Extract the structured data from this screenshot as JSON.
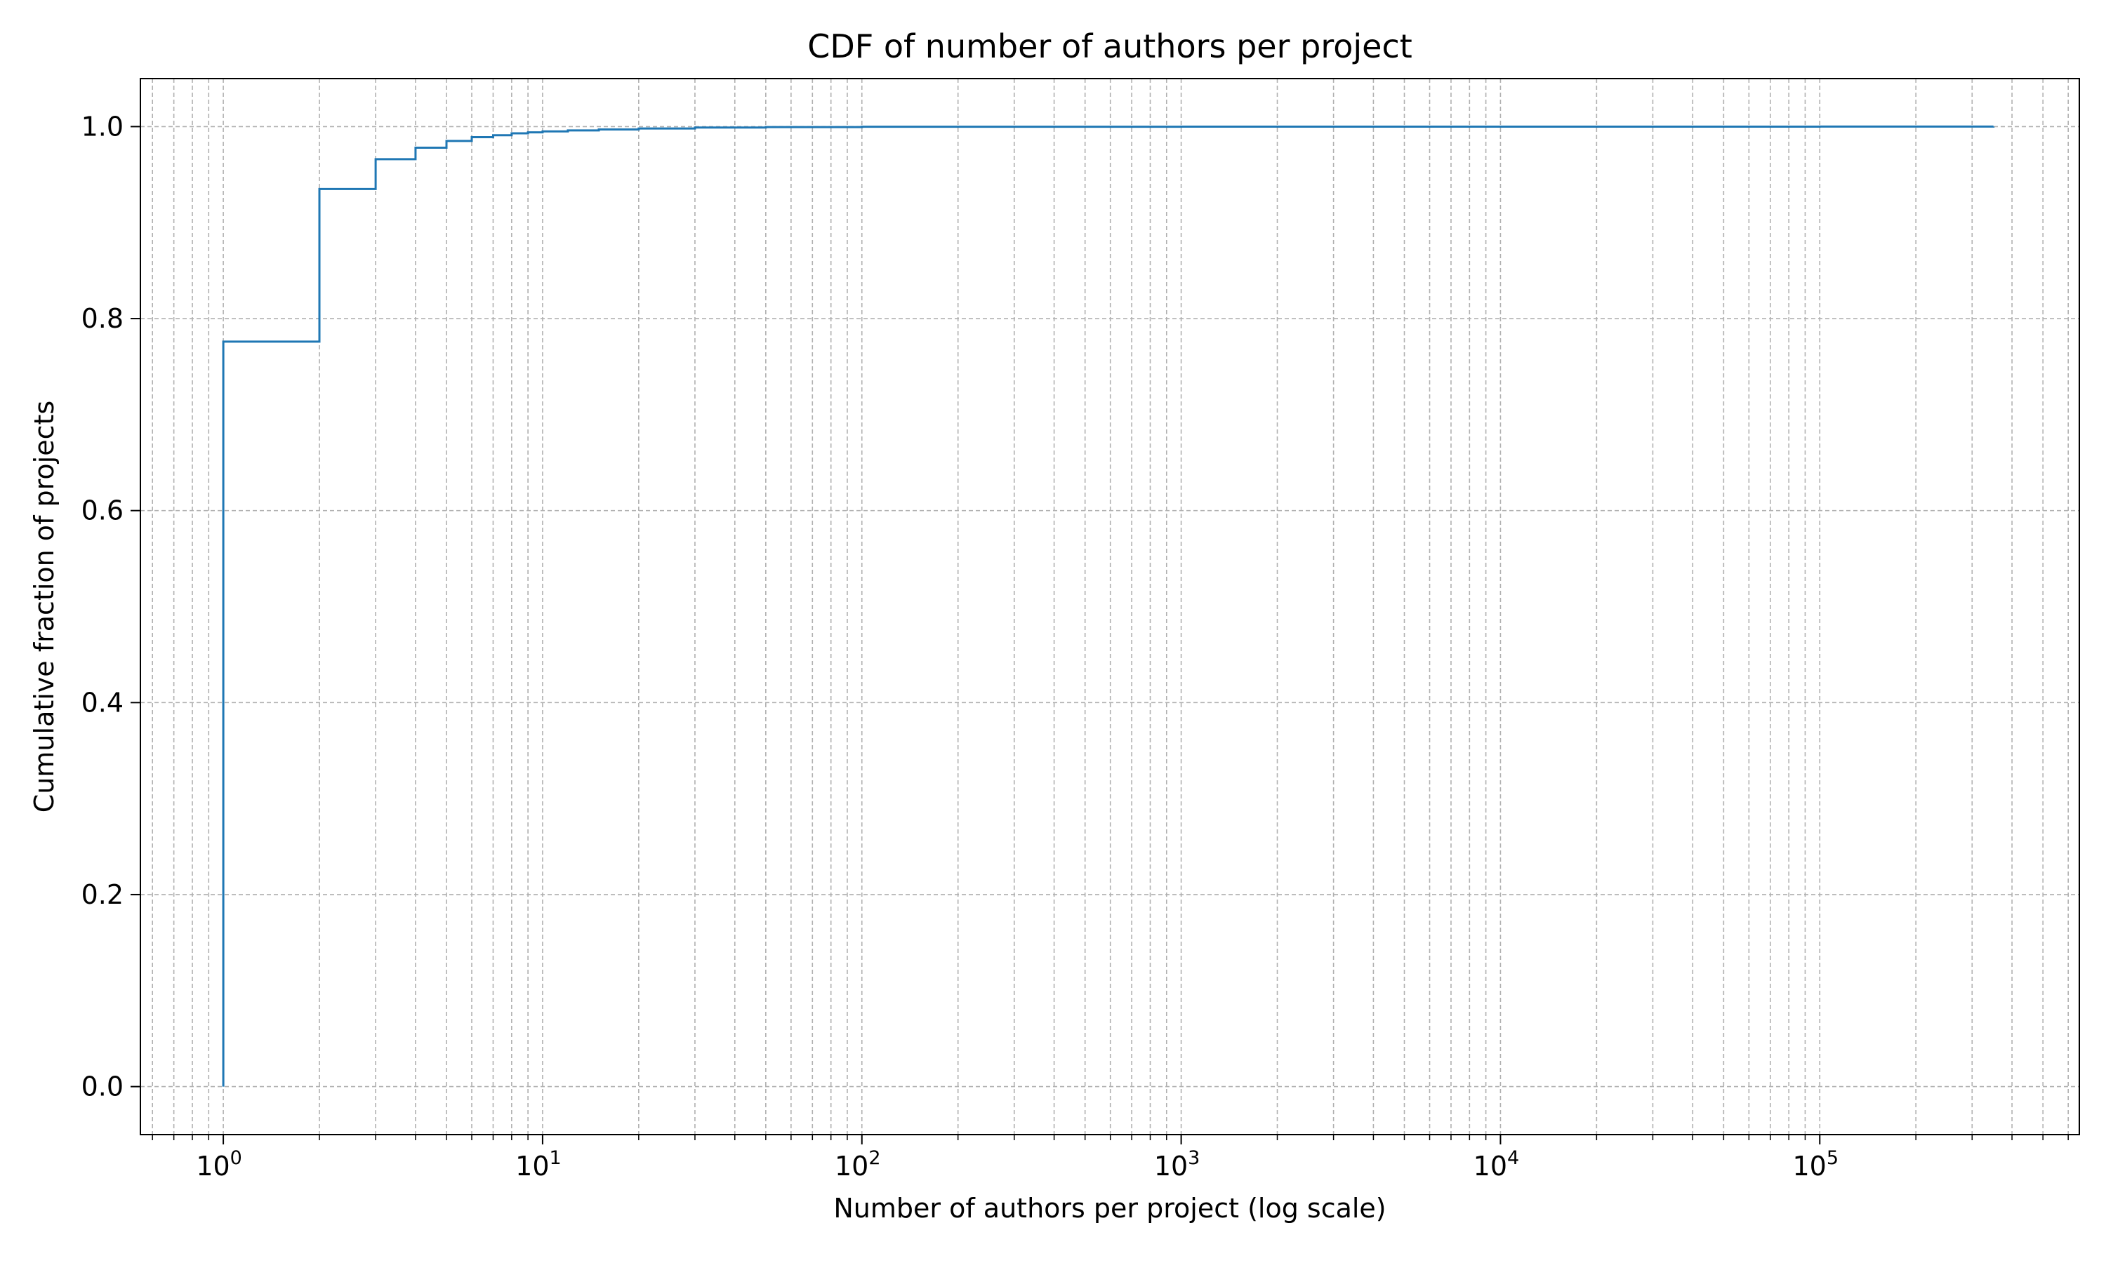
{
  "chart_data": {
    "type": "line",
    "title": "CDF of number of authors per project",
    "xlabel": "Number of authors per project (log scale)",
    "ylabel": "Cumulative fraction of projects",
    "xscale": "log",
    "xlim": [
      0.55,
      650000
    ],
    "ylim": [
      -0.05,
      1.05
    ],
    "grid": true,
    "grid_which": "both",
    "grid_style": "dashed",
    "x_ticks": [
      {
        "value": 1,
        "base": "10",
        "exp": "0"
      },
      {
        "value": 10,
        "base": "10",
        "exp": "1"
      },
      {
        "value": 100,
        "base": "10",
        "exp": "2"
      },
      {
        "value": 1000,
        "base": "10",
        "exp": "3"
      },
      {
        "value": 10000,
        "base": "10",
        "exp": "4"
      },
      {
        "value": 100000,
        "base": "10",
        "exp": "5"
      }
    ],
    "y_ticks": [
      {
        "value": 0.0,
        "label": "0.0"
      },
      {
        "value": 0.2,
        "label": "0.2"
      },
      {
        "value": 0.4,
        "label": "0.4"
      },
      {
        "value": 0.6,
        "label": "0.6"
      },
      {
        "value": 0.8,
        "label": "0.8"
      },
      {
        "value": 1.0,
        "label": "1.0"
      }
    ],
    "series": [
      {
        "color": "#1f77b4",
        "step": "post",
        "x": [
          1,
          1,
          2,
          3,
          4,
          5,
          6,
          7,
          8,
          9,
          10,
          12,
          15,
          20,
          30,
          50,
          100,
          1000,
          10000,
          100000,
          350000
        ],
        "y": [
          0.0,
          0.776,
          0.935,
          0.966,
          0.978,
          0.985,
          0.989,
          0.991,
          0.993,
          0.994,
          0.995,
          0.996,
          0.997,
          0.998,
          0.999,
          0.9995,
          0.9998,
          0.9999,
          0.99995,
          0.99999,
          1.0
        ]
      }
    ]
  }
}
